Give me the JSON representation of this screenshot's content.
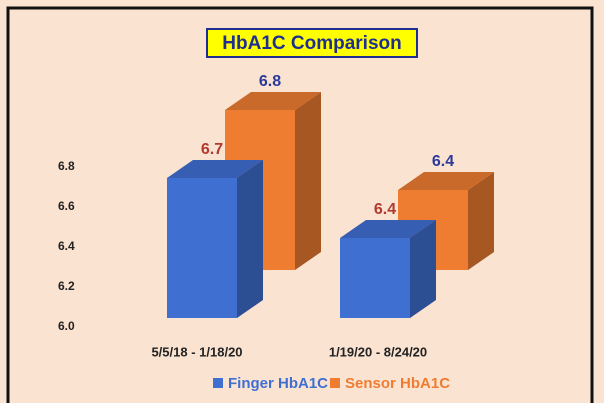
{
  "chart_data": {
    "type": "bar3d",
    "title": "HbA1C Comparison",
    "categories": [
      "5/5/18 - 1/18/20",
      "1/19/20 - 8/24/20"
    ],
    "series": [
      {
        "name": "Finger HbA1C",
        "color": "#3f6fd1",
        "label_color": "#b03a2e",
        "values": [
          6.7,
          6.4
        ]
      },
      {
        "name": "Sensor HbA1C",
        "color": "#ee7d31",
        "label_color": "#2a3a9a",
        "values": [
          6.8,
          6.4
        ]
      }
    ],
    "ylim": [
      6.0,
      6.9
    ],
    "yticks": [
      {
        "value": 6.0,
        "label": "6.0"
      },
      6.2,
      6.4,
      6.6,
      6.8
    ]
  }
}
